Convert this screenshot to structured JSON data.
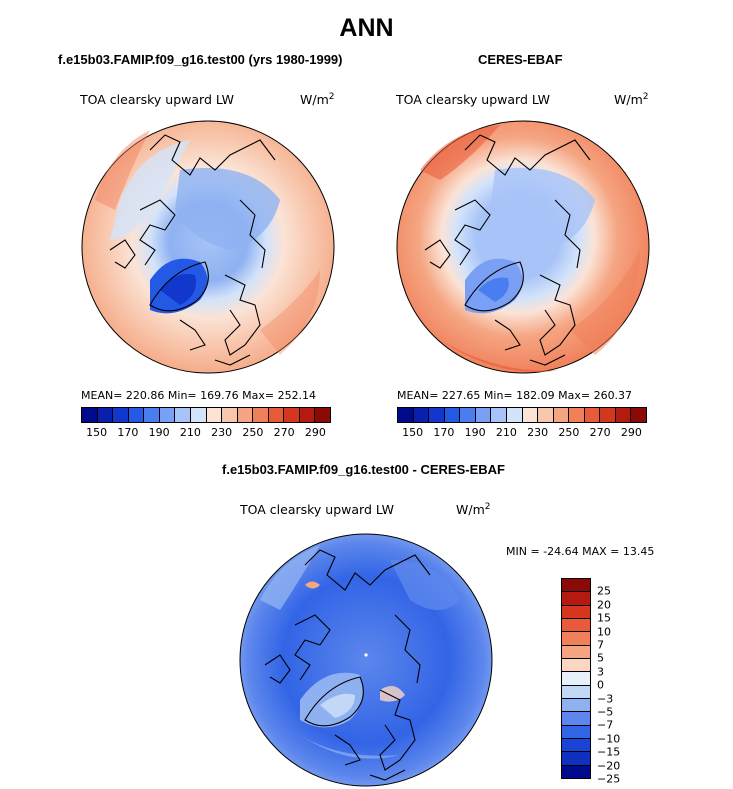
{
  "title": "ANN",
  "panels": [
    {
      "case_title": "f.e15b03.FAMIP.f09_g16.test00 (yrs 1980-1999)",
      "variable": "TOA clearsky upward LW",
      "units": "W/m",
      "units_sup": "2",
      "stats": "MEAN= 220.86    Min= 169.76    Max= 252.14"
    },
    {
      "case_title": "CERES-EBAF",
      "variable": "TOA clearsky upward LW",
      "units": "W/m",
      "units_sup": "2",
      "stats": "MEAN= 227.65    Min= 182.09    Max= 260.37"
    }
  ],
  "diff": {
    "case_title": "f.e15b03.FAMIP.f09_g16.test00 - CERES-EBAF",
    "variable": "TOA clearsky upward LW",
    "units": "W/m",
    "units_sup": "2",
    "stats": "MIN = -24.64  MAX =   13.45"
  },
  "colorbar_abs": {
    "colors": [
      "#000a8c",
      "#0a1fae",
      "#1237cc",
      "#2459e6",
      "#4a7ef0",
      "#7aa0f5",
      "#a7c3f7",
      "#d3e3fa",
      "#fbe3d6",
      "#f8c7ad",
      "#f5a582",
      "#f07f5a",
      "#e85a38",
      "#d5361e",
      "#b41a10",
      "#8c0a05"
    ],
    "ticks": [
      "150",
      "170",
      "190",
      "210",
      "230",
      "250",
      "270",
      "290"
    ]
  },
  "colorbar_diff": {
    "colors": [
      "#8c0a05",
      "#b41a10",
      "#d5361e",
      "#e85a38",
      "#f07f5a",
      "#f5a582",
      "#fbd6c4",
      "#e8f0fb",
      "#c3d8f7",
      "#8fb1f1",
      "#5d87ec",
      "#3264e6",
      "#1a44d8",
      "#0f2fbd",
      "#000a8c"
    ],
    "ticks": [
      "25",
      "20",
      "15",
      "10",
      "7",
      "5",
      "3",
      "0",
      "−3",
      "−5",
      "−7",
      "−10",
      "−15",
      "−20",
      "−25"
    ]
  }
}
